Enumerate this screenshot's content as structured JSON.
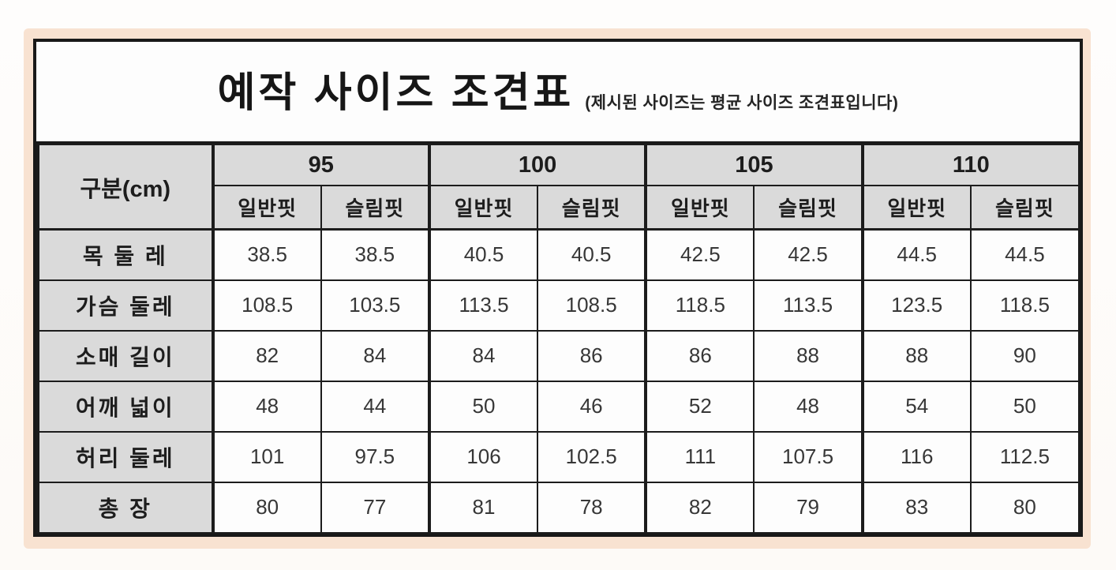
{
  "chart_data": {
    "type": "table",
    "title": "예작 사이즈 조견표",
    "subtitle": "(제시된 사이즈는 평균 사이즈 조견표입니다)",
    "corner_label": "구분(cm)",
    "column_groups": [
      "95",
      "100",
      "105",
      "110"
    ],
    "sub_columns": [
      "일반핏",
      "슬림핏"
    ],
    "rows": [
      {
        "label": "목 둘 레",
        "values": [
          "38.5",
          "38.5",
          "40.5",
          "40.5",
          "42.5",
          "42.5",
          "44.5",
          "44.5"
        ]
      },
      {
        "label": "가슴 둘레",
        "values": [
          "108.5",
          "103.5",
          "113.5",
          "108.5",
          "118.5",
          "113.5",
          "123.5",
          "118.5"
        ]
      },
      {
        "label": "소매 길이",
        "values": [
          "82",
          "84",
          "84",
          "86",
          "86",
          "88",
          "88",
          "90"
        ]
      },
      {
        "label": "어깨 넓이",
        "values": [
          "48",
          "44",
          "50",
          "46",
          "52",
          "48",
          "54",
          "50"
        ]
      },
      {
        "label": "허리 둘레",
        "values": [
          "101",
          "97.5",
          "106",
          "102.5",
          "111",
          "107.5",
          "116",
          "112.5"
        ]
      },
      {
        "label": "총 장",
        "values": [
          "80",
          "77",
          "81",
          "78",
          "82",
          "79",
          "83",
          "80"
        ]
      }
    ],
    "unit": "cm",
    "layout": {
      "grid": "on",
      "header_rows": 2,
      "data_columns_per_group": 2
    }
  },
  "colors": {
    "frame_peach": "#f8e2d1",
    "header_gray": "#dadada",
    "cell_white": "#fdfdfd",
    "border_black": "#1c1c1c",
    "title_text": "#161616",
    "value_text": "#373737",
    "page_background": "#fdfaf7"
  }
}
